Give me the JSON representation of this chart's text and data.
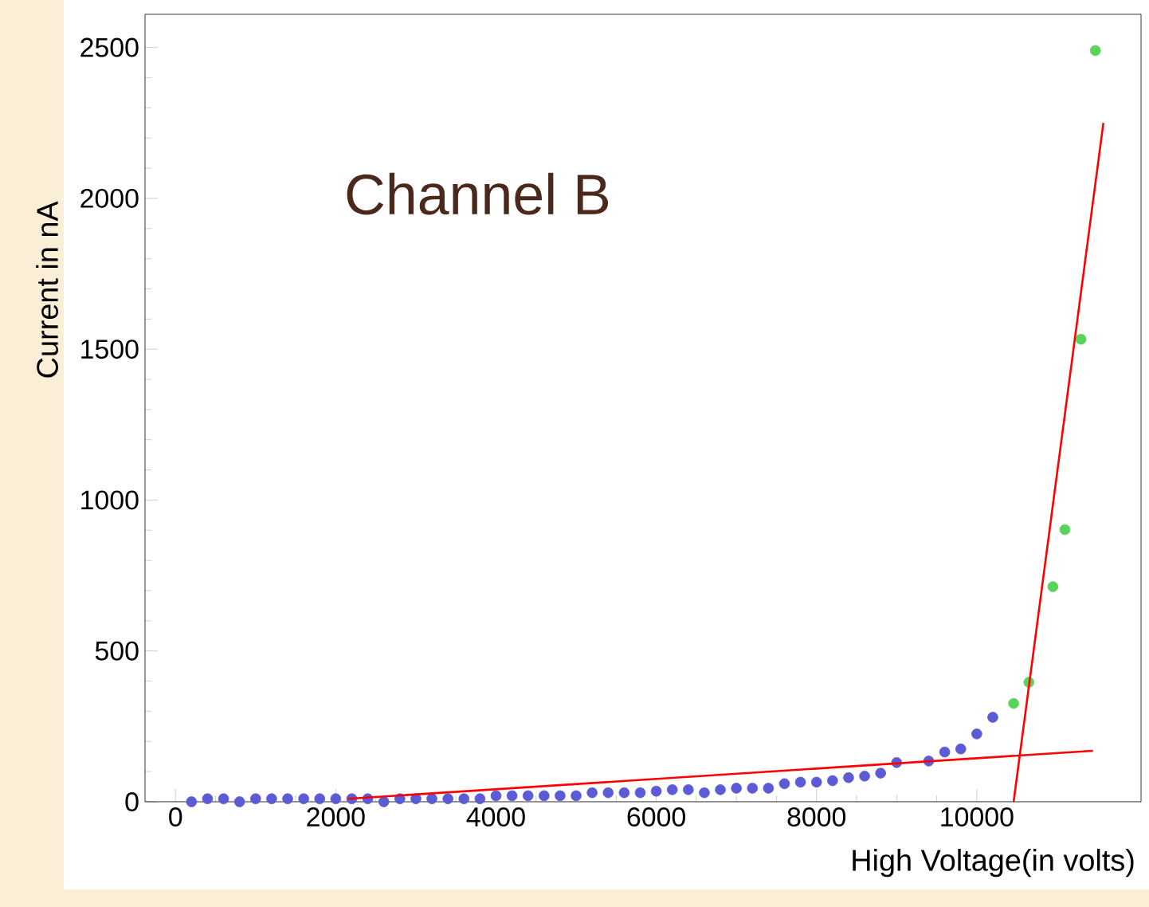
{
  "chart_data": {
    "type": "scatter",
    "title": "Channel B",
    "xlabel": "High Voltage(in volts)",
    "ylabel": "Current in nA",
    "xlim": [
      -380,
      12050
    ],
    "ylim": [
      0,
      2610
    ],
    "xticks": [
      0,
      2000,
      4000,
      6000,
      8000,
      10000
    ],
    "yticks": [
      0,
      500,
      1000,
      1500,
      2000,
      2500
    ],
    "grid": false,
    "series": [
      {
        "marker": "circle",
        "color": "#5b5bd6",
        "x": [
          200,
          400,
          600,
          800,
          1000,
          1200,
          1400,
          1600,
          1800,
          2000,
          2200,
          2400,
          2600,
          2800,
          3000,
          3200,
          3400,
          3600,
          3800,
          4000,
          4200,
          4400,
          4600,
          4800,
          5000,
          5200,
          5400,
          5600,
          5800,
          6000,
          6200,
          6400,
          6600,
          6800,
          7000,
          7200,
          7400,
          7600,
          7800,
          8000,
          8200,
          8400,
          8600,
          8800,
          9000,
          9400,
          9600,
          9800,
          10000,
          10200
        ],
        "values": [
          0,
          10,
          10,
          0,
          10,
          10,
          10,
          10,
          10,
          10,
          10,
          10,
          0,
          10,
          10,
          10,
          10,
          10,
          10,
          20,
          20,
          20,
          20,
          20,
          20,
          30,
          30,
          30,
          30,
          35,
          40,
          40,
          30,
          40,
          45,
          45,
          45,
          60,
          65,
          65,
          70,
          80,
          85,
          95,
          130,
          135,
          165,
          175,
          225,
          280
        ]
      },
      {
        "marker": "circle",
        "color": "#5ad35a",
        "x": [
          10460,
          10650,
          10950,
          11100,
          11300,
          11480
        ],
        "values": [
          326,
          396,
          713,
          902,
          1533,
          2490
        ]
      },
      {
        "type": "line",
        "marker": "none",
        "color": "#ff0000",
        "x": [
          2150,
          11450
        ],
        "values": [
          10,
          169
        ]
      },
      {
        "type": "line",
        "marker": "none",
        "color": "#ff0000",
        "x": [
          10460,
          11580
        ],
        "values": [
          0,
          2250
        ]
      }
    ]
  }
}
